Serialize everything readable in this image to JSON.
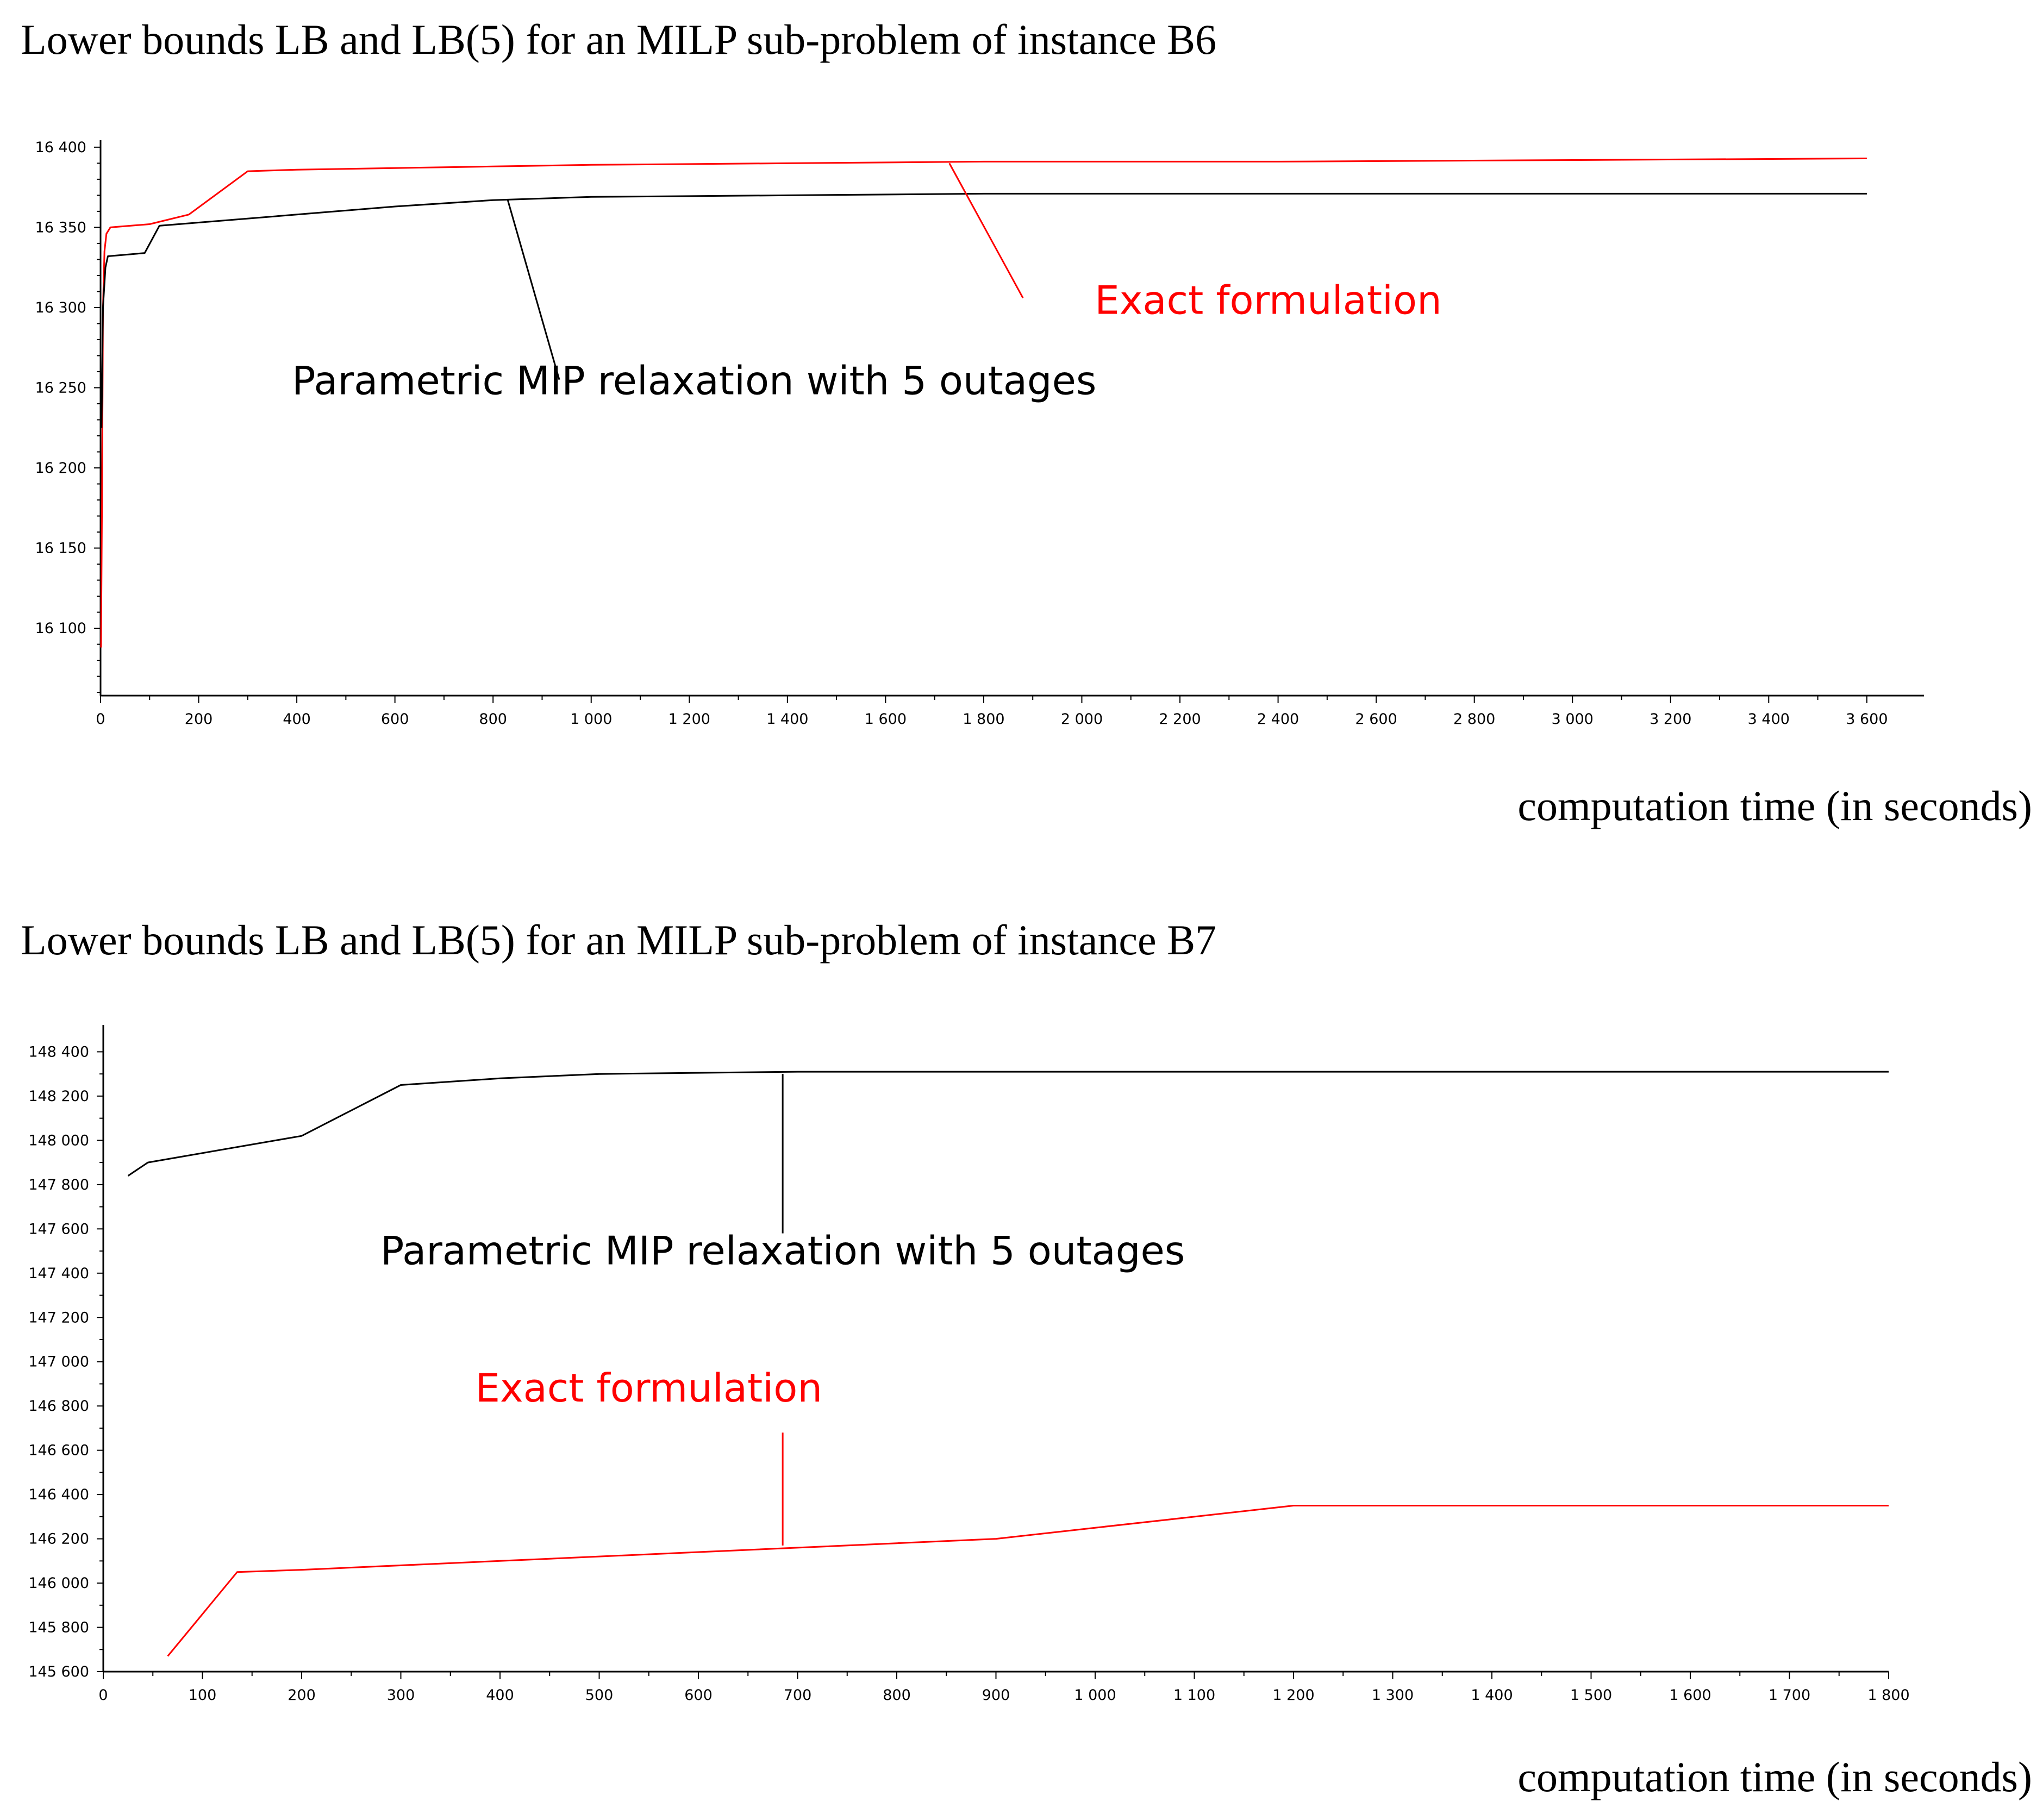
{
  "chart_data": [
    {
      "type": "line",
      "title": "Lower bounds LB and LB(5) for an MILP sub-problem of instance B6",
      "xlabel": "computation time (in seconds)",
      "ylabel": "",
      "xlim": [
        0,
        3650
      ],
      "ylim": [
        16058,
        16403
      ],
      "xticks": [
        0,
        200,
        400,
        600,
        800,
        1000,
        1200,
        1400,
        1600,
        1800,
        2000,
        2200,
        2400,
        2600,
        2800,
        3000,
        3200,
        3400,
        3600
      ],
      "xtick_labels": [
        "0",
        "200",
        "400",
        "600",
        "800",
        "1 000",
        "1 200",
        "1 400",
        "1 600",
        "1 800",
        "2 000",
        "2 200",
        "2 400",
        "2 600",
        "2 800",
        "3 000",
        "3 200",
        "3 400",
        "3 600"
      ],
      "yticks": [
        16100,
        16150,
        16200,
        16250,
        16300,
        16350,
        16400
      ],
      "ytick_labels": [
        "16 100",
        "16 150",
        "16 200",
        "16 250",
        "16 300",
        "16 350",
        "16 400"
      ],
      "grid": false,
      "series": [
        {
          "name": "",
          "color": "#ff0000",
          "x": [
            1,
            3,
            5,
            8,
            12,
            20,
            100,
            180,
            300,
            400,
            600,
            800,
            1000,
            1400,
            1800,
            2400,
            3000,
            3600
          ],
          "y": [
            16088,
            16180,
            16300,
            16335,
            16346,
            16350,
            16352,
            16358,
            16385,
            16386,
            16387,
            16388,
            16389,
            16390,
            16391,
            16391,
            16392,
            16393
          ]
        },
        {
          "name": "",
          "color": "#000000",
          "x": [
            2,
            5,
            10,
            15,
            90,
            120,
            200,
            400,
            600,
            800,
            1000,
            1400,
            1800,
            2400,
            3000,
            3600
          ],
          "y": [
            16225,
            16300,
            16325,
            16332,
            16334,
            16351,
            16353,
            16358,
            16363,
            16367,
            16369,
            16370,
            16371,
            16371,
            16371,
            16371
          ]
        }
      ],
      "annotations": [
        {
          "text": "Exact formulation",
          "color": "#ff0000",
          "x": 2380,
          "y": 16296,
          "line_from": [
            1730,
            16390
          ],
          "line_to": [
            1880,
            16306
          ]
        },
        {
          "text": "Parametric MIP relaxation with 5 outages",
          "color": "#000000",
          "x": 1210,
          "y": 16246,
          "line_from": [
            830,
            16367
          ],
          "line_to": [
            935,
            16255
          ]
        }
      ]
    },
    {
      "type": "line",
      "title": "Lower bounds LB and LB(5) for an MILP sub-problem of instance B7",
      "xlabel": "computation time (in seconds)",
      "ylabel": "",
      "xlim": [
        0,
        1800
      ],
      "ylim": [
        145600,
        148460
      ],
      "xticks": [
        0,
        100,
        200,
        300,
        400,
        500,
        600,
        700,
        800,
        900,
        1000,
        1100,
        1200,
        1300,
        1400,
        1500,
        1600,
        1700,
        1800
      ],
      "xtick_labels": [
        "0",
        "100",
        "200",
        "300",
        "400",
        "500",
        "600",
        "700",
        "800",
        "900",
        "1 000",
        "1 100",
        "1 200",
        "1 300",
        "1 400",
        "1 500",
        "1 600",
        "1 700",
        "1 800"
      ],
      "yticks": [
        145600,
        145800,
        146000,
        146200,
        146400,
        146600,
        146800,
        147000,
        147200,
        147400,
        147600,
        147800,
        148000,
        148200,
        148400
      ],
      "ytick_labels": [
        "145 600",
        "145 800",
        "146 000",
        "146 200",
        "146 400",
        "146 600",
        "146 800",
        "147 000",
        "147 200",
        "147 400",
        "147 600",
        "147 800",
        "148 000",
        "148 200",
        "148 400"
      ],
      "grid": false,
      "series": [
        {
          "name": "",
          "color": "#000000",
          "x": [
            25,
            45,
            200,
            300,
            400,
            500,
            600,
            700,
            1000,
            1800
          ],
          "y": [
            147840,
            147900,
            148020,
            148250,
            148280,
            148300,
            148305,
            148310,
            148310,
            148310
          ]
        },
        {
          "name": "",
          "color": "#ff0000",
          "x": [
            65,
            135,
            200,
            400,
            600,
            700,
            800,
            900,
            1000,
            1100,
            1200,
            1800
          ],
          "y": [
            145670,
            146050,
            146060,
            146100,
            146140,
            146160,
            146180,
            146200,
            146250,
            146300,
            146350,
            146350
          ]
        }
      ],
      "annotations": [
        {
          "text": "Parametric MIP relaxation with 5 outages",
          "color": "#000000",
          "x": 685,
          "y": 147440,
          "line_from": [
            685,
            148300
          ],
          "line_to": [
            685,
            147580
          ]
        },
        {
          "text": "Exact formulation",
          "color": "#ff0000",
          "x": 550,
          "y": 146820,
          "line_from": [
            685,
            146680
          ],
          "line_to": [
            685,
            146170
          ]
        }
      ]
    }
  ]
}
